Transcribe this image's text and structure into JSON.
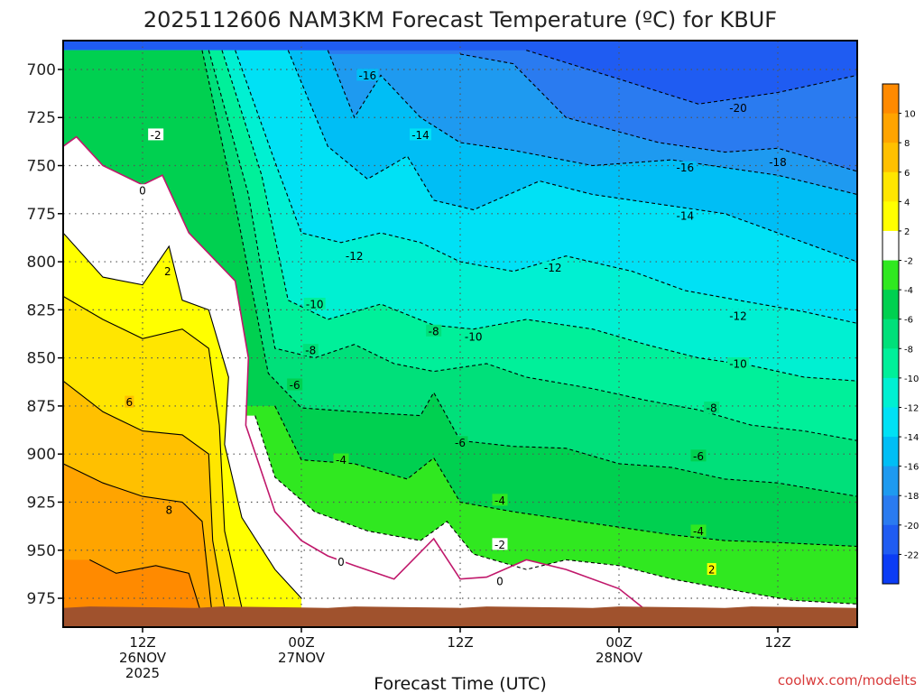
{
  "chart_data": {
    "type": "heatmap",
    "title": "2025112606 NAM3KM Forecast Temperature (ºC) for KBUF",
    "xlabel": "Forecast Time (UTC)",
    "ylabel": "",
    "credit": "coolwx.com/modelts",
    "y_axis": {
      "unit": "hPa",
      "ticks": [
        700,
        725,
        750,
        775,
        800,
        825,
        850,
        875,
        900,
        925,
        950,
        975
      ],
      "range": [
        685,
        990
      ]
    },
    "x_axis": {
      "unit": "forecast hour (from 2025112606)",
      "range": [
        0,
        60
      ],
      "ticks": [
        {
          "hour": 6,
          "line1": "12Z",
          "line2": "26NOV",
          "line3": "2025"
        },
        {
          "hour": 18,
          "line1": "00Z",
          "line2": "27NOV",
          "line3": ""
        },
        {
          "hour": 30,
          "line1": "12Z",
          "line2": "",
          "line3": ""
        },
        {
          "hour": 42,
          "line1": "00Z",
          "line2": "28NOV",
          "line3": ""
        },
        {
          "hour": 54,
          "line1": "12Z",
          "line2": "",
          "line3": ""
        }
      ]
    },
    "terrain_pressure_hPa": 980,
    "colorbar": {
      "levels": [
        -24,
        -22,
        -20,
        -18,
        -16,
        -14,
        -12,
        -10,
        -8,
        -6,
        -4,
        -2,
        2,
        4,
        6,
        8,
        10,
        12
      ],
      "tick_labels": [
        "-22",
        "-20",
        "-18",
        "-16",
        "-14",
        "-12",
        "-10",
        "-8",
        "-6",
        "-4",
        "-2",
        "2",
        "4",
        "6",
        "8",
        "10"
      ],
      "colors": [
        "#0b3cf5",
        "#1f5cf2",
        "#2a7bf0",
        "#1e9af0",
        "#00bef5",
        "#00e1f5",
        "#00f0d2",
        "#00f09a",
        "#00e07a",
        "#00d050",
        "#30e820",
        "#ffffff",
        "#ffff00",
        "#ffe600",
        "#ffc000",
        "#ffa400",
        "#ff8a00"
      ]
    },
    "isotherms": [
      {
        "value": -20,
        "pressure_by_hour": [
          [
            35,
            690
          ],
          [
            42,
            705
          ],
          [
            48,
            718
          ],
          [
            54,
            712
          ],
          [
            60,
            703
          ]
        ]
      },
      {
        "value": -18,
        "pressure_by_hour": [
          [
            30,
            692
          ],
          [
            34,
            697
          ],
          [
            38,
            725
          ],
          [
            45,
            738
          ],
          [
            50,
            743
          ],
          [
            54,
            741
          ],
          [
            60,
            753
          ]
        ]
      },
      {
        "value": -16,
        "pressure_by_hour": [
          [
            20,
            690
          ],
          [
            22,
            725
          ],
          [
            24,
            703
          ],
          [
            27,
            725
          ],
          [
            30,
            738
          ],
          [
            34,
            742
          ],
          [
            40,
            750
          ],
          [
            46,
            747
          ],
          [
            50,
            751
          ],
          [
            54,
            755
          ],
          [
            60,
            765
          ]
        ]
      },
      {
        "value": -14,
        "pressure_by_hour": [
          [
            17,
            690
          ],
          [
            20,
            740
          ],
          [
            23,
            757
          ],
          [
            26,
            745
          ],
          [
            28,
            768
          ],
          [
            31,
            773
          ],
          [
            36,
            758
          ],
          [
            40,
            765
          ],
          [
            46,
            771
          ],
          [
            50,
            775
          ],
          [
            56,
            790
          ],
          [
            60,
            800
          ]
        ]
      },
      {
        "value": -12,
        "pressure_by_hour": [
          [
            13,
            690
          ],
          [
            16,
            748
          ],
          [
            18,
            785
          ],
          [
            21,
            790
          ],
          [
            24,
            785
          ],
          [
            27,
            790
          ],
          [
            30,
            800
          ],
          [
            34,
            805
          ],
          [
            38,
            797
          ],
          [
            43,
            805
          ],
          [
            47,
            815
          ],
          [
            51,
            820
          ],
          [
            56,
            826
          ],
          [
            60,
            832
          ]
        ]
      },
      {
        "value": -10,
        "pressure_by_hour": [
          [
            12,
            690
          ],
          [
            15,
            755
          ],
          [
            17,
            820
          ],
          [
            20,
            830
          ],
          [
            24,
            822
          ],
          [
            28,
            833
          ],
          [
            31,
            835
          ],
          [
            35,
            830
          ],
          [
            40,
            835
          ],
          [
            44,
            843
          ],
          [
            48,
            850
          ],
          [
            52,
            854
          ],
          [
            56,
            860
          ],
          [
            60,
            862
          ]
        ]
      },
      {
        "value": -8,
        "pressure_by_hour": [
          [
            11,
            690
          ],
          [
            14,
            765
          ],
          [
            16,
            845
          ],
          [
            19,
            850
          ],
          [
            22,
            843
          ],
          [
            25,
            853
          ],
          [
            28,
            857
          ],
          [
            32,
            853
          ],
          [
            35,
            860
          ],
          [
            40,
            866
          ],
          [
            44,
            872
          ],
          [
            48,
            877
          ],
          [
            52,
            885
          ],
          [
            56,
            888
          ],
          [
            60,
            893
          ]
        ]
      },
      {
        "value": -6,
        "pressure_by_hour": [
          [
            10.5,
            690
          ],
          [
            13,
            770
          ],
          [
            15.5,
            858
          ],
          [
            18,
            876
          ],
          [
            22,
            878
          ],
          [
            27,
            880
          ],
          [
            28,
            868
          ],
          [
            30,
            893
          ],
          [
            34,
            896
          ],
          [
            38,
            897
          ],
          [
            42,
            905
          ],
          [
            46,
            907
          ],
          [
            50,
            913
          ],
          [
            54,
            915
          ],
          [
            60,
            922
          ]
        ]
      },
      {
        "value": -4,
        "pressure_by_hour": [
          [
            16,
            875
          ],
          [
            18,
            903
          ],
          [
            22,
            905
          ],
          [
            26,
            913
          ],
          [
            28,
            902
          ],
          [
            30,
            925
          ],
          [
            34,
            930
          ],
          [
            38,
            934
          ],
          [
            42,
            938
          ],
          [
            46,
            942
          ],
          [
            50,
            945
          ],
          [
            54,
            946
          ],
          [
            60,
            948
          ]
        ]
      },
      {
        "value": -2,
        "pressure_by_hour": [
          [
            14.5,
            880
          ],
          [
            16,
            912
          ],
          [
            19,
            930
          ],
          [
            23,
            940
          ],
          [
            27,
            945
          ],
          [
            29,
            935
          ],
          [
            31,
            952
          ],
          [
            35,
            960
          ],
          [
            38,
            955
          ],
          [
            42,
            958
          ],
          [
            46,
            965
          ],
          [
            50,
            970
          ],
          [
            55,
            976
          ],
          [
            60,
            978
          ]
        ]
      },
      {
        "value": 0,
        "pressure_by_hour": [
          [
            0,
            740
          ],
          [
            1,
            735
          ],
          [
            3,
            750
          ],
          [
            6,
            760
          ],
          [
            7.5,
            755
          ],
          [
            9.5,
            785
          ],
          [
            13,
            810
          ],
          [
            14,
            850
          ],
          [
            13.8,
            885
          ],
          [
            16,
            930
          ],
          [
            18,
            945
          ],
          [
            20,
            953
          ],
          [
            22,
            958
          ],
          [
            25,
            965
          ],
          [
            28,
            944
          ],
          [
            30,
            965
          ],
          [
            32,
            964
          ],
          [
            35,
            955
          ],
          [
            38,
            960
          ],
          [
            42,
            970
          ],
          [
            44,
            981
          ]
        ]
      },
      {
        "value": 2,
        "pressure_by_hour": [
          [
            0,
            785
          ],
          [
            3,
            808
          ],
          [
            6,
            812
          ],
          [
            8,
            792
          ],
          [
            9,
            820
          ],
          [
            11,
            825
          ],
          [
            12.5,
            860
          ],
          [
            12.2,
            895
          ],
          [
            13.5,
            933
          ],
          [
            16,
            960
          ],
          [
            18,
            975
          ]
        ]
      },
      {
        "value": 4,
        "pressure_by_hour": [
          [
            0,
            818
          ],
          [
            3,
            830
          ],
          [
            6,
            840
          ],
          [
            9,
            835
          ],
          [
            11,
            845
          ],
          [
            11.8,
            885
          ],
          [
            12.2,
            940
          ],
          [
            13.5,
            980
          ]
        ]
      },
      {
        "value": 6,
        "pressure_by_hour": [
          [
            0,
            862
          ],
          [
            3,
            878
          ],
          [
            6,
            888
          ],
          [
            9,
            890
          ],
          [
            11,
            900
          ],
          [
            11.3,
            945
          ],
          [
            12.2,
            980
          ]
        ]
      },
      {
        "value": 8,
        "pressure_by_hour": [
          [
            0,
            905
          ],
          [
            3,
            915
          ],
          [
            6,
            922
          ],
          [
            9,
            925
          ],
          [
            10.5,
            935
          ],
          [
            11.2,
            980
          ]
        ]
      },
      {
        "value": 10,
        "pressure_by_hour": [
          [
            2,
            955
          ],
          [
            4,
            962
          ],
          [
            7,
            958
          ],
          [
            9.5,
            962
          ],
          [
            10.3,
            980
          ]
        ]
      }
    ],
    "contour_labels": [
      {
        "text": "-16",
        "hour": 23,
        "p": 703
      },
      {
        "text": "-14",
        "hour": 27,
        "p": 734
      },
      {
        "text": "-20",
        "hour": 51,
        "p": 720
      },
      {
        "text": "-18",
        "hour": 54,
        "p": 748
      },
      {
        "text": "-16",
        "hour": 47,
        "p": 751
      },
      {
        "text": "-14",
        "hour": 47,
        "p": 776
      },
      {
        "text": "-12",
        "hour": 22,
        "p": 797
      },
      {
        "text": "-12",
        "hour": 37,
        "p": 803
      },
      {
        "text": "-12",
        "hour": 51,
        "p": 828
      },
      {
        "text": "-10",
        "hour": 19,
        "p": 822
      },
      {
        "text": "-10",
        "hour": 31,
        "p": 839
      },
      {
        "text": "-10",
        "hour": 51,
        "p": 853
      },
      {
        "text": "-8",
        "hour": 18.7,
        "p": 846
      },
      {
        "text": "-8",
        "hour": 28,
        "p": 836
      },
      {
        "text": "-8",
        "hour": 49,
        "p": 876
      },
      {
        "text": "-6",
        "hour": 17.5,
        "p": 864
      },
      {
        "text": "-6",
        "hour": 30,
        "p": 894
      },
      {
        "text": "-6",
        "hour": 48,
        "p": 901
      },
      {
        "text": "-4",
        "hour": 21,
        "p": 903
      },
      {
        "text": "-4",
        "hour": 33,
        "p": 924
      },
      {
        "text": "-4",
        "hour": 48,
        "p": 940
      },
      {
        "text": "-2",
        "hour": 7,
        "p": 734
      },
      {
        "text": "-2",
        "hour": 33,
        "p": 947
      },
      {
        "text": "0",
        "hour": 6,
        "p": 763
      },
      {
        "text": "0",
        "hour": 21,
        "p": 956
      },
      {
        "text": "0",
        "hour": 33,
        "p": 966
      },
      {
        "text": "2",
        "hour": 7.9,
        "p": 805
      },
      {
        "text": "2",
        "hour": 49,
        "p": 960
      },
      {
        "text": "6",
        "hour": 5,
        "p": 873
      },
      {
        "text": "8",
        "hour": 8,
        "p": 929
      }
    ]
  }
}
